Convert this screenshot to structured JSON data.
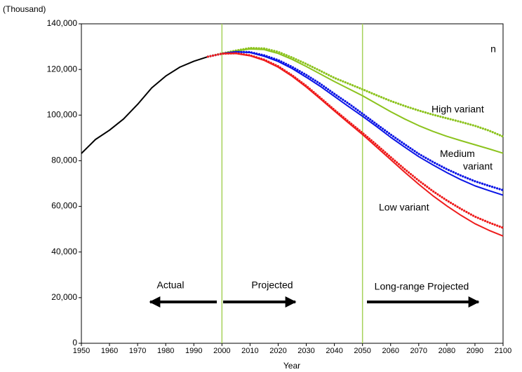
{
  "chart_data": {
    "type": "line",
    "unit_label": "(Thousand)",
    "x_label": "Year",
    "x": [
      1950,
      1955,
      1960,
      1965,
      1970,
      1975,
      1980,
      1985,
      1990,
      1995,
      2000,
      2005,
      2010,
      2015,
      2020,
      2025,
      2030,
      2035,
      2040,
      2045,
      2050,
      2055,
      2060,
      2065,
      2070,
      2075,
      2080,
      2085,
      2090,
      2095,
      2100
    ],
    "series": [
      {
        "color": "#000000",
        "style": "solid",
        "values": [
          83200,
          89300,
          93400,
          98300,
          104700,
          111900,
          117100,
          121000,
          123600,
          125600,
          null,
          null,
          null,
          null,
          null,
          null,
          null,
          null,
          null,
          null,
          null,
          null,
          null,
          null,
          null,
          null,
          null,
          null,
          null,
          null,
          null
        ]
      },
      {
        "name": "High variant",
        "color": "#8cc31e",
        "style": "dotted",
        "values": [
          null,
          null,
          null,
          null,
          null,
          null,
          null,
          null,
          null,
          125600,
          127000,
          128300,
          129400,
          129200,
          127700,
          125200,
          122400,
          119400,
          116300,
          113800,
          111300,
          108700,
          106200,
          104000,
          102000,
          100200,
          98600,
          97000,
          95300,
          93200,
          90600
        ]
      },
      {
        "color": "#8cc31e",
        "style": "solid",
        "values": [
          null,
          null,
          null,
          null,
          null,
          null,
          null,
          null,
          null,
          null,
          127000,
          128100,
          129000,
          128700,
          127000,
          124400,
          121300,
          118000,
          114700,
          111600,
          108500,
          105000,
          101500,
          98300,
          95400,
          92900,
          90700,
          88800,
          87000,
          85200,
          83300
        ]
      },
      {
        "name": "Medium variant",
        "color": "#0a14e6",
        "style": "dotted",
        "values": [
          null,
          null,
          null,
          null,
          null,
          null,
          null,
          null,
          null,
          125600,
          126900,
          127700,
          127600,
          126200,
          124100,
          121100,
          117600,
          113700,
          109300,
          105100,
          100600,
          96000,
          91500,
          87200,
          83000,
          79500,
          76300,
          73500,
          71000,
          69000,
          67100
        ]
      },
      {
        "color": "#0a14e6",
        "style": "solid",
        "values": [
          null,
          null,
          null,
          null,
          null,
          null,
          null,
          null,
          null,
          null,
          126900,
          127700,
          127400,
          125800,
          123500,
          120400,
          116600,
          112600,
          108200,
          103800,
          99500,
          95000,
          90300,
          86000,
          81800,
          78200,
          74800,
          71700,
          69000,
          66900,
          64900
        ]
      },
      {
        "name": "Low variant",
        "color": "#ee1c1c",
        "style": "dotted",
        "values": [
          null,
          null,
          null,
          null,
          null,
          null,
          null,
          null,
          null,
          125600,
          126900,
          127100,
          126200,
          124300,
          121400,
          117400,
          112800,
          107600,
          102300,
          97200,
          92200,
          87000,
          81600,
          76300,
          71300,
          66700,
          62600,
          58900,
          55500,
          52900,
          50600
        ]
      },
      {
        "color": "#ee1c1c",
        "style": "solid",
        "values": [
          null,
          null,
          null,
          null,
          null,
          null,
          null,
          null,
          null,
          null,
          126900,
          127000,
          126000,
          124000,
          121000,
          117000,
          112300,
          107100,
          101800,
          96600,
          91500,
          86000,
          80500,
          75000,
          69700,
          64700,
          60200,
          56100,
          52400,
          49500,
          47000
        ]
      }
    ],
    "xlim": [
      1950,
      2100
    ],
    "ylim": [
      0,
      140000
    ],
    "xticks": [
      1950,
      1960,
      1970,
      1980,
      1990,
      2000,
      2010,
      2020,
      2030,
      2040,
      2050,
      2060,
      2070,
      2080,
      2090,
      2100
    ],
    "yticks": [
      0,
      {
        "value": 20000,
        "label": "20,000"
      },
      {
        "value": 40000,
        "label": "40,000"
      },
      {
        "value": 60000,
        "label": "60,000"
      },
      {
        "value": 80000,
        "label": "80,000"
      },
      {
        "value": 100000,
        "label": "100,000"
      },
      {
        "value": 120000,
        "label": "120,000"
      },
      {
        "value": 140000,
        "label": "140,000"
      }
    ],
    "vlines": [
      2000,
      2050
    ],
    "vline_color": "#a6d25a",
    "annotations": [
      "Actual",
      "Projected",
      "Long-range Projected",
      "n"
    ]
  }
}
